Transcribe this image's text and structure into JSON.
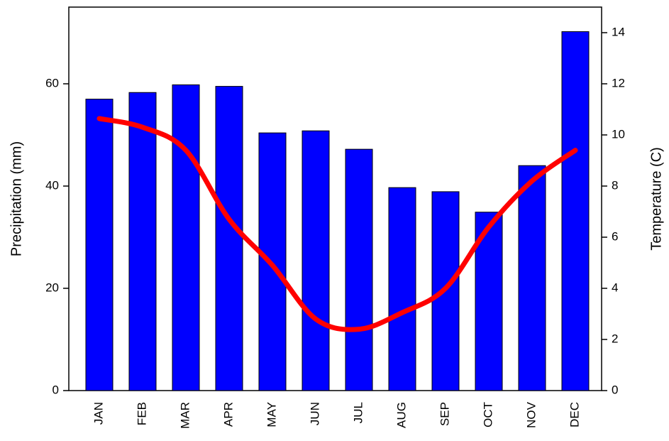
{
  "chart_data": {
    "type": "bar",
    "categories": [
      "JAN",
      "FEB",
      "MAR",
      "APR",
      "MAY",
      "JUN",
      "JUL",
      "AUG",
      "SEP",
      "OCT",
      "NOV",
      "DEC"
    ],
    "series": [
      {
        "type": "bar",
        "color": "#0000ff",
        "values": [
          57,
          58.3,
          59.8,
          59.5,
          50.4,
          50.8,
          47.2,
          39.7,
          38.9,
          34.9,
          44,
          70.2
        ]
      },
      {
        "type": "line",
        "axis": "y2",
        "color": "#ff0000",
        "values": [
          10.64,
          10.3,
          9.4,
          6.7,
          4.9,
          2.8,
          2.4,
          3.05,
          4.0,
          6.4,
          8.2,
          9.4
        ]
      }
    ],
    "y_label": "Precipitation (mm)",
    "y_label_color": "#0000ff",
    "y2_label": "Temperature (C)",
    "y2_label_color": "#ff0000",
    "ylim": [
      0,
      75
    ],
    "yticks": [
      0,
      20,
      40,
      60
    ],
    "y2lim": [
      0,
      15
    ],
    "y2ticks": [
      0,
      2,
      4,
      6,
      8,
      10,
      12,
      14
    ]
  }
}
